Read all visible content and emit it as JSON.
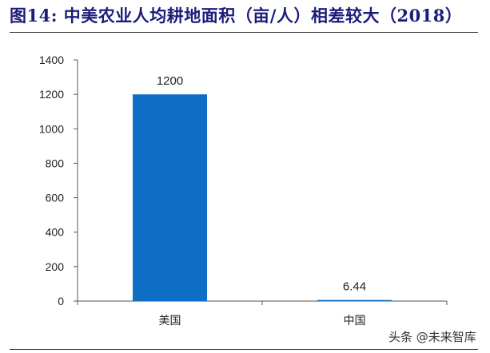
{
  "title": "图14:  中美农业人均耕地面积（亩/人）相差较大（2018）",
  "watermark": "头条 @未来智库",
  "chart_data": {
    "type": "bar",
    "title": "图14:  中美农业人均耕地面积（亩/人）相差较大（2018）",
    "categories": [
      "美国",
      "中国"
    ],
    "values": [
      1200,
      6.44
    ],
    "value_labels": [
      "1200",
      "6.44"
    ],
    "ylim": [
      0,
      1400
    ],
    "yticks": [
      0,
      200,
      400,
      600,
      800,
      1000,
      1200,
      1400
    ],
    "xlabel": "",
    "ylabel": "",
    "grid": false,
    "bar_color": "#0f6fc6"
  }
}
